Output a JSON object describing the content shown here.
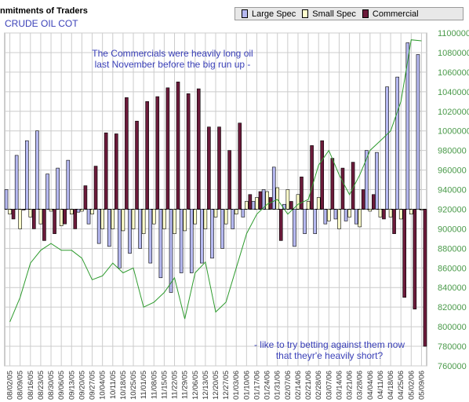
{
  "title": "nmitments of Traders",
  "subtitle": "CRUDE OIL COT",
  "legend": [
    {
      "name": "Large Spec",
      "color": "#b5b8f0"
    },
    {
      "name": "Small Spec",
      "color": "#ffffcc"
    },
    {
      "name": "Commercial",
      "color": "#6b1a3a"
    }
  ],
  "annotations": [
    "The Commercials were heavily long oil\nlast November before the big run up -",
    "- like to try betting against them now\nthat theyr'e heavily short?"
  ],
  "colors": {
    "large_spec": "#b5b8f0",
    "small_spec": "#ffffcc",
    "commercial": "#6b1a3a",
    "price_line": "#2e9b2e",
    "grid": "#cccccc",
    "bar_outline": "#000000"
  },
  "chart_data": {
    "type": "bar",
    "title": "CRUDE OIL COT",
    "categories": [
      "08/02/05",
      "08/09/05",
      "08/16/05",
      "08/23/05",
      "08/30/05",
      "09/06/05",
      "09/13/05",
      "09/20/05",
      "09/27/05",
      "10/04/05",
      "10/11/05",
      "10/18/05",
      "10/25/05",
      "11/01/05",
      "11/08/05",
      "11/15/05",
      "11/22/05",
      "11/29/05",
      "12/06/05",
      "12/13/05",
      "12/20/05",
      "12/27/05",
      "01/03/06",
      "01/10/06",
      "01/17/06",
      "01/24/06",
      "01/31/06",
      "02/07/06",
      "02/14/06",
      "02/21/06",
      "02/28/06",
      "03/07/06",
      "03/14/06",
      "03/21/06",
      "03/28/06",
      "04/04/06",
      "04/11/06",
      "04/18/06",
      "04/25/06",
      "05/02/06",
      "05/09/06"
    ],
    "x_tick_labels": [
      "08/02/05",
      "08/09/05",
      "08/16/05",
      "08/23/05",
      "08/30/05",
      "09/06/05",
      "09/13/05",
      "09/20/05",
      "09/27/05",
      "10/04/05",
      "10/11/05",
      "10/18/05",
      "10/25/05",
      "11/01/05",
      "11/08/05",
      "11/15/05",
      "11/22/05",
      "11/29/05",
      "12/06/05",
      "12/13/05",
      "12/20/05",
      "12/27/05",
      "01/03/06",
      "01/10/06",
      "01/17/06",
      "01/24/06",
      "01/31/06",
      "02/07/06",
      "02/14/06",
      "02/21/06",
      "02/28/06",
      "03/07/06",
      "03/14/06",
      "03/21/06",
      "03/28/06",
      "04/04/06",
      "04/11/06",
      "04/18/06",
      "04/25/06",
      "05/02/06",
      "05/09/06"
    ],
    "series": [
      {
        "name": "Large Spec",
        "values": [
          940,
          975,
          990,
          1000,
          956,
          962,
          970,
          917,
          905,
          885,
          882,
          860,
          875,
          880,
          865,
          850,
          835,
          855,
          855,
          865,
          870,
          880,
          900,
          912,
          928,
          940,
          963,
          925,
          882,
          895,
          895,
          905,
          910,
          908,
          905,
          980,
          978,
          1045,
          1055,
          1090,
          1078
        ]
      },
      {
        "name": "Small Spec",
        "values": [
          915,
          900,
          912,
          905,
          918,
          903,
          915,
          918,
          915,
          900,
          900,
          898,
          900,
          895,
          905,
          900,
          895,
          898,
          905,
          900,
          912,
          905,
          915,
          928,
          932,
          938,
          942,
          940,
          935,
          928,
          932,
          908,
          900,
          912,
          902,
          918,
          912,
          912,
          910,
          915,
          920
        ]
      },
      {
        "name": "Commercial",
        "values": [
          910,
          920,
          900,
          888,
          895,
          905,
          900,
          944,
          964,
          998,
          997,
          1034,
          1010,
          1030,
          1035,
          1044,
          1050,
          1038,
          1043,
          1004,
          1004,
          980,
          1008,
          935,
          938,
          932,
          888,
          928,
          953,
          985,
          990,
          972,
          962,
          968,
          940,
          935,
          910,
          895,
          830,
          818,
          780
        ]
      }
    ],
    "price_line": {
      "values": [
        805,
        830,
        865,
        878,
        885,
        878,
        878,
        870,
        848,
        852,
        865,
        855,
        860,
        820,
        825,
        835,
        850,
        808,
        855,
        866,
        815,
        825,
        860,
        895,
        915,
        925,
        930,
        915,
        925,
        930,
        965,
        980,
        955,
        935,
        955,
        980,
        990,
        1000,
        1030,
        1093,
        1092
      ]
    },
    "y_axis_right": {
      "ylim": [
        760000,
        1100000
      ],
      "ticks": [
        760000,
        780000,
        800000,
        820000,
        840000,
        860000,
        880000,
        900000,
        920000,
        940000,
        960000,
        980000,
        1000000,
        1020000,
        1040000,
        1060000,
        1080000,
        1100000
      ],
      "base": 920000,
      "grid": true
    },
    "legend_position": "top-right"
  }
}
